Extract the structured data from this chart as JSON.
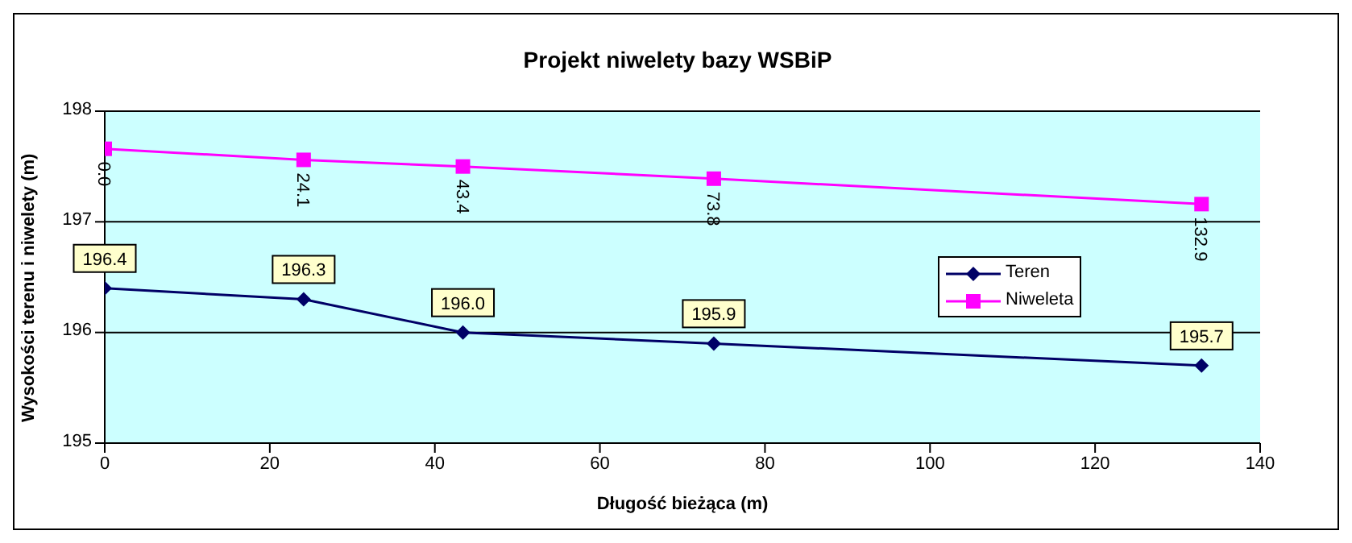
{
  "chart_data": {
    "type": "line",
    "title": "Projekt niwelety bazy WSBiP",
    "xlabel": "Długość bieżąca (m)",
    "ylabel": "Wysokości terenu i niwelety (m)",
    "x": [
      0,
      24.1,
      43.4,
      73.8,
      132.9
    ],
    "series": [
      {
        "name": "Teren",
        "color": "#000066",
        "marker": "diamond",
        "values": [
          196.4,
          196.3,
          196.0,
          195.9,
          195.7
        ],
        "value_labels": [
          "196.4",
          "196.3",
          "196.0",
          "195.9",
          "195.7"
        ]
      },
      {
        "name": "Niweleta",
        "color": "#ff00ff",
        "marker": "square",
        "values": [
          197.66,
          197.56,
          197.5,
          197.39,
          197.16
        ]
      }
    ],
    "annotations": [
      {
        "text": "0.0",
        "x": 0,
        "y": 197.66
      },
      {
        "text": "24.1",
        "x": 24.1,
        "y": 197.56
      },
      {
        "text": "43.4",
        "x": 43.4,
        "y": 197.5
      },
      {
        "text": "73.8",
        "x": 73.8,
        "y": 197.39
      },
      {
        "text": "132.9",
        "x": 132.9,
        "y": 197.16
      }
    ],
    "xlim": [
      0,
      140
    ],
    "xticks": [
      0,
      20,
      40,
      60,
      80,
      100,
      120,
      140
    ],
    "ylim": [
      195,
      198
    ],
    "yticks": [
      195,
      196,
      197,
      198
    ],
    "grid": "y",
    "legend": "right",
    "line_style": "solid"
  }
}
